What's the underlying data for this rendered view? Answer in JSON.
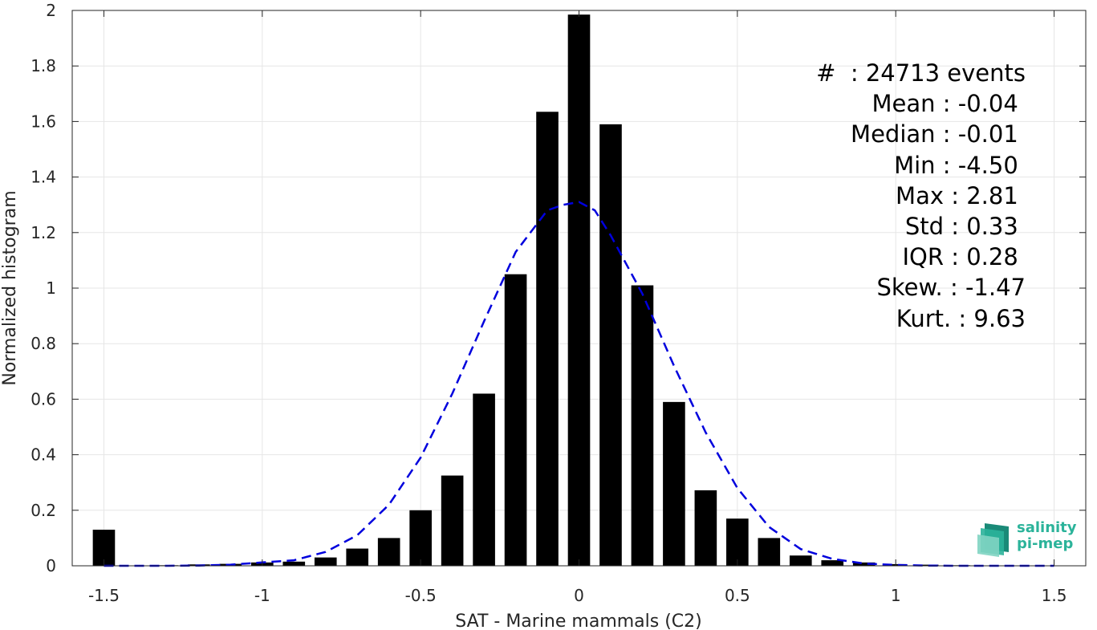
{
  "chart_data": {
    "type": "bar",
    "xlabel": "SAT - Marine mammals (C2)",
    "ylabel": "Normalized histogram",
    "xlim": [
      -1.6,
      1.6
    ],
    "ylim": [
      0,
      2
    ],
    "grid": true,
    "x_ticks": [
      "-1.5",
      "-1",
      "-0.5",
      "0",
      "0.5",
      "1",
      "1.5"
    ],
    "x_tick_values": [
      -1.5,
      -1,
      -0.5,
      0,
      0.5,
      1,
      1.5
    ],
    "y_ticks": [
      "0",
      "0.2",
      "0.4",
      "0.6",
      "0.8",
      "1",
      "1.2",
      "1.4",
      "1.6",
      "1.8",
      "2"
    ],
    "y_tick_values": [
      0,
      0.2,
      0.4,
      0.6,
      0.8,
      1,
      1.2,
      1.4,
      1.6,
      1.8,
      2
    ],
    "bar_width": 0.07,
    "bars": {
      "x": [
        -1.5,
        -1.4,
        -1.3,
        -1.2,
        -1.1,
        -1.0,
        -0.9,
        -0.8,
        -0.7,
        -0.6,
        -0.5,
        -0.4,
        -0.3,
        -0.2,
        -0.1,
        0.0,
        0.1,
        0.2,
        0.3,
        0.4,
        0.5,
        0.6,
        0.7,
        0.8,
        0.9,
        1.0,
        1.1,
        1.2,
        1.3,
        1.4,
        1.5
      ],
      "y": [
        0.13,
        0.0,
        0.002,
        0.005,
        0.007,
        0.012,
        0.015,
        0.03,
        0.062,
        0.1,
        0.2,
        0.325,
        0.62,
        1.05,
        1.635,
        1.985,
        1.59,
        1.01,
        0.59,
        0.272,
        0.17,
        0.1,
        0.037,
        0.02,
        0.012,
        0.006,
        0.004,
        0.002,
        0.001,
        0.001,
        0.001
      ],
      "color": "#000000"
    },
    "fit_curve": {
      "style": "dashed",
      "color": "#0000dd",
      "x": [
        -1.5,
        -1.4,
        -1.3,
        -1.2,
        -1.1,
        -1.0,
        -0.9,
        -0.8,
        -0.7,
        -0.6,
        -0.5,
        -0.4,
        -0.3,
        -0.2,
        -0.1,
        -0.05,
        0.0,
        0.05,
        0.1,
        0.2,
        0.3,
        0.4,
        0.5,
        0.6,
        0.7,
        0.8,
        0.9,
        1.0,
        1.1,
        1.2,
        1.3,
        1.4,
        1.5
      ],
      "y": [
        0.0,
        0.0,
        0.0,
        0.001,
        0.004,
        0.012,
        0.02,
        0.05,
        0.11,
        0.22,
        0.39,
        0.62,
        0.88,
        1.13,
        1.28,
        1.3,
        1.31,
        1.28,
        1.19,
        0.98,
        0.72,
        0.48,
        0.28,
        0.14,
        0.06,
        0.025,
        0.008,
        0.003,
        0.001,
        0.0,
        0.0,
        0.0,
        0.0
      ]
    },
    "annotation_position": "top-right",
    "annotations": [
      "#  : 24713 events",
      "Mean : -0.04 ",
      "Median : -0.01 ",
      "Min : -4.50 ",
      "Max : 2.81 ",
      "Std : 0.33 ",
      "IQR : 0.28 ",
      "Skew. : -1.47",
      "Kurt. : 9.63"
    ]
  },
  "logo": {
    "line1": "salinity",
    "line2": "pi-mep",
    "color": "#2bb39a"
  }
}
